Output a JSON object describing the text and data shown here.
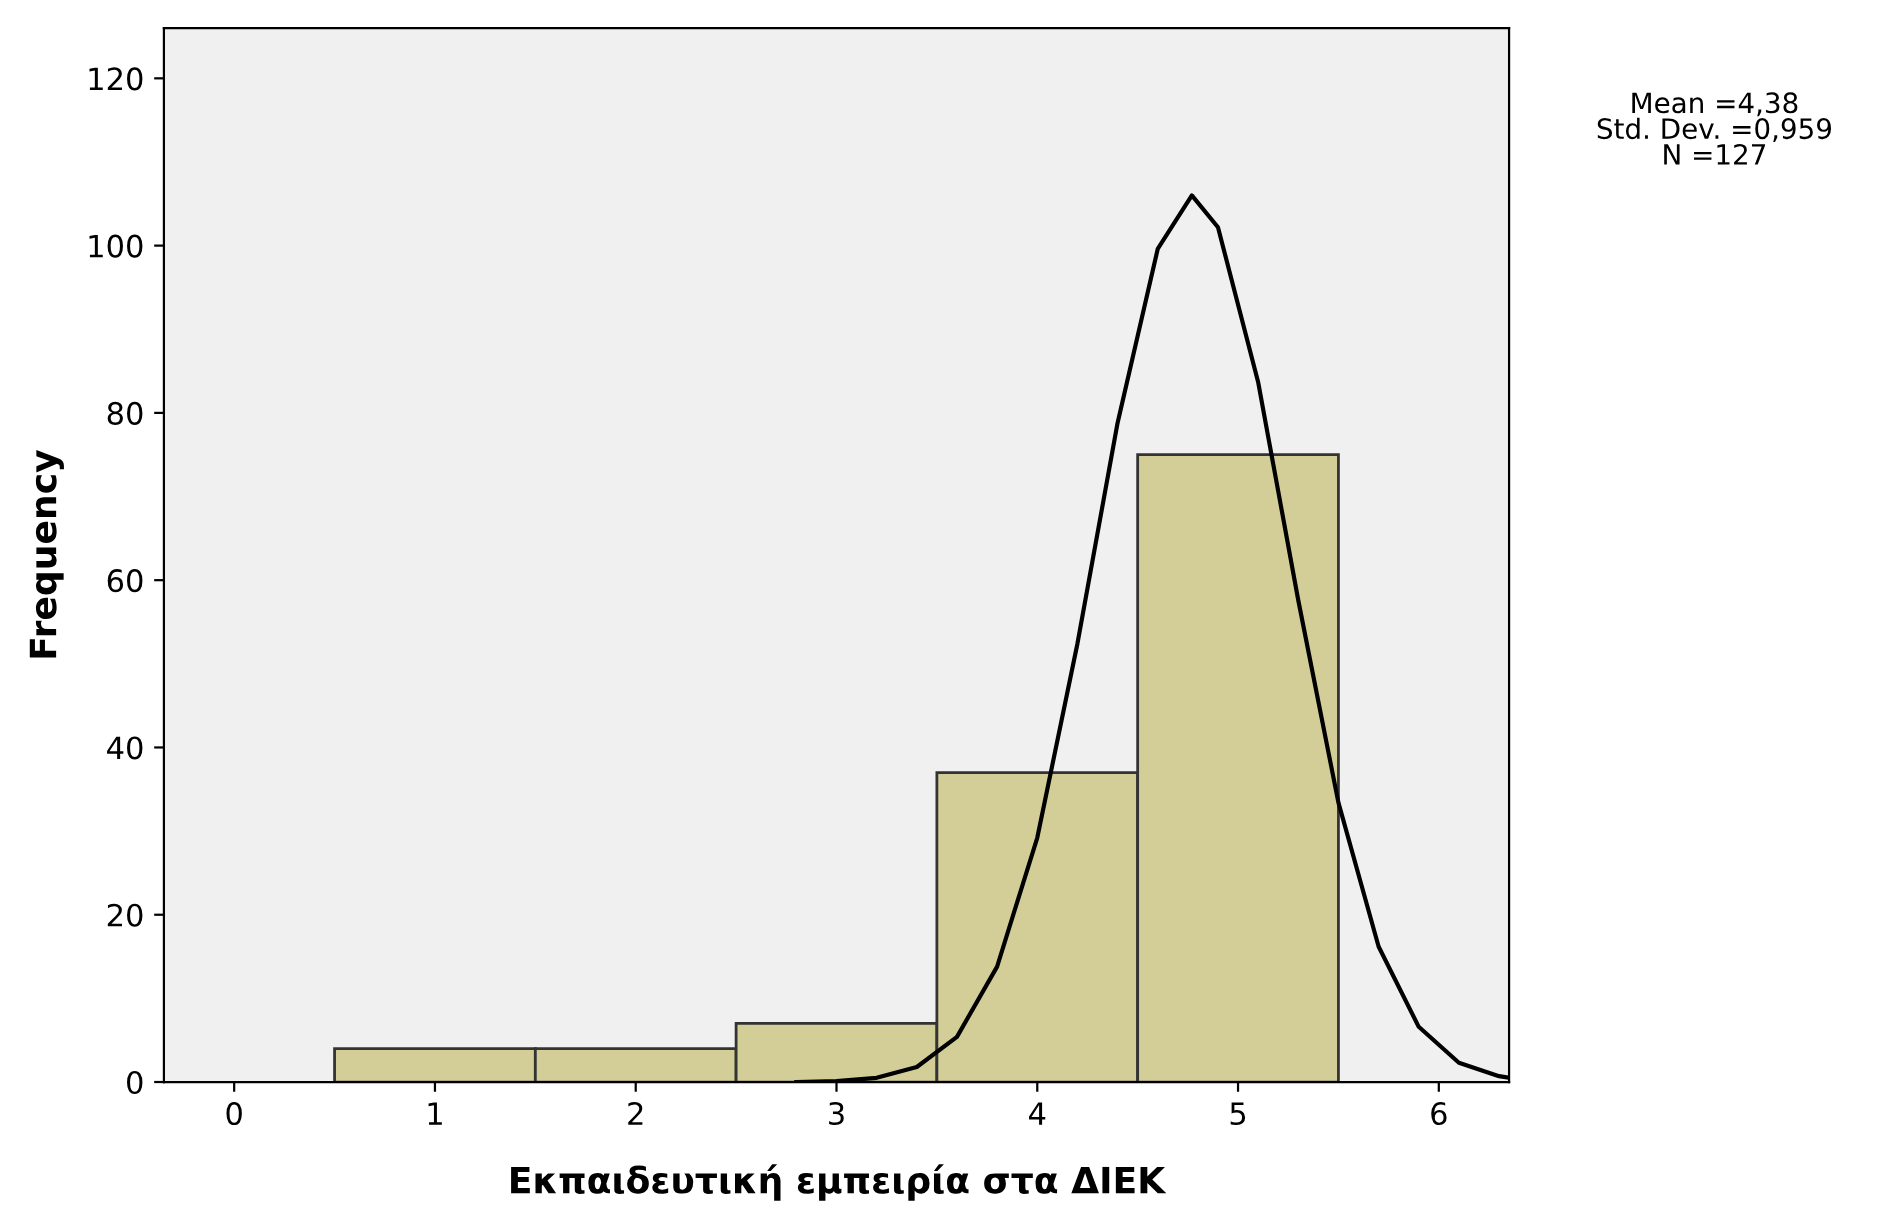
{
  "chart_data": {
    "type": "histogram",
    "xlabel": "Εκπαιδευτική εμπειρία στα ΔΙΕΚ",
    "ylabel": "Frequency",
    "annotations": [
      "Mean =4,38\nStd. Dev. =0,959\nN =127"
    ],
    "series": [
      {
        "bins": [
          0.5,
          1.5,
          2.5,
          3.5,
          4.5,
          5.5
        ],
        "values": [
          4,
          4,
          7,
          37,
          75
        ],
        "color": "#d3ce97"
      },
      {
        "type": "line",
        "x": [
          2.8,
          3.0,
          3.2,
          3.4,
          3.6,
          3.8,
          4.0,
          4.2,
          4.4,
          4.6,
          4.77,
          4.9,
          5.1,
          5.3,
          5.5,
          5.7,
          5.9,
          6.1,
          6.3,
          6.35
        ],
        "values": [
          0,
          0.1,
          0.5,
          1.8,
          5.4,
          13.8,
          29.2,
          52.4,
          78.8,
          99.6,
          106,
          102.2,
          83.7,
          57.6,
          33.4,
          16.2,
          6.6,
          2.3,
          0.7,
          0.5
        ],
        "color": "#000000"
      }
    ],
    "xlim": [
      -0.35,
      6.35
    ],
    "ylim": [
      0,
      126
    ],
    "xticks": [
      0,
      1,
      2,
      3,
      4,
      5,
      6
    ],
    "yticks": [
      0,
      20,
      40,
      60,
      80,
      100,
      120
    ],
    "grid": false,
    "marker": "none",
    "line_style": "solid"
  }
}
